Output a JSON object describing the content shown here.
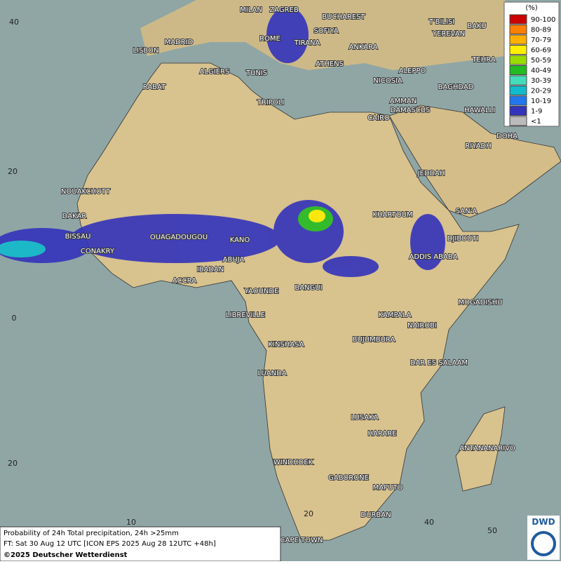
{
  "map": {
    "cities": [
      "MILAN",
      "ZAGREB",
      "BUCHAREST",
      "MADRID",
      "ROME",
      "SOFIYA",
      "T'BILISI",
      "BAKU",
      "LISBON",
      "TIRANA",
      "YEREVAN",
      "ANKARA",
      "TEHRA",
      "ALGIERS",
      "TUNIS",
      "ATHENS",
      "ALEPPO",
      "RABAT",
      "NICOSIA",
      "BAGHDAD",
      "DAMASCUS",
      "AMMAN",
      "TRIPOLI",
      "CAIRO",
      "HAWALLI",
      "DOHA",
      "RIYADH",
      "NOUAKCHOTT",
      "JEDDAH",
      "DAKAR",
      "KHARTOUM",
      "SAN'A",
      "BISSAU",
      "OUAGADOUGOU",
      "KANO",
      "DJIBOUTI",
      "CONAKRY",
      "ABUJA",
      "ADDIS ABABA",
      "IBADAN",
      "ACCRA",
      "YAOUNDE",
      "BANGUI",
      "MOGADISHU",
      "LIBREVILLE",
      "KAMPALA",
      "NAIROBI",
      "KINSHASA",
      "BUJUMBURA",
      "DAR ES SALAAM",
      "LUANDA",
      "LUSAKA",
      "HARARE",
      "ANTANANARIVO",
      "WINDHOEK",
      "GABORONE",
      "MAPUTO",
      "DURBAN",
      "CAPE TOWN"
    ],
    "grid_labels": [
      "40",
      "20",
      "0",
      "20",
      "10",
      "20",
      "40",
      "50"
    ],
    "legend": {
      "title": "(%)",
      "entries": [
        {
          "label": "90-100",
          "color": "#cc0000"
        },
        {
          "label": "80-89",
          "color": "#ff7f00"
        },
        {
          "label": "70-79",
          "color": "#ffb000"
        },
        {
          "label": "60-69",
          "color": "#ffee00"
        },
        {
          "label": "50-59",
          "color": "#99dd00"
        },
        {
          "label": "40-49",
          "color": "#22bb22"
        },
        {
          "label": "30-39",
          "color": "#44ddbb"
        },
        {
          "label": "20-29",
          "color": "#11bbcc"
        },
        {
          "label": "10-19",
          "color": "#2277ee"
        },
        {
          "label": "1-9",
          "color": "#3333bb"
        },
        {
          "label": "<1",
          "color": "#bbbbbb"
        }
      ]
    },
    "caption": [
      "Probability of 24h Total precipitation, 24h >25mm",
      "FT: Sat 30 Aug 12 UTC [ICON EPS 2025 Aug 28 12UTC +48h]",
      "©2025 Deutscher Wetterdienst"
    ],
    "logo": "DWD"
  }
}
